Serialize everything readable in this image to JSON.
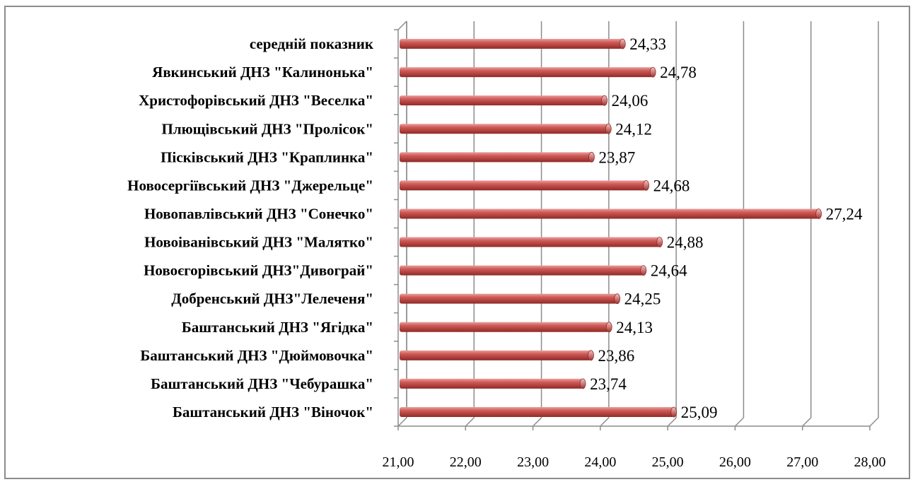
{
  "chart_data": {
    "type": "bar",
    "orientation": "horizontal",
    "title": "",
    "xlabel": "",
    "ylabel": "",
    "xlim": [
      21,
      28
    ],
    "ticks": [
      "21,00",
      "22,00",
      "23,00",
      "24,00",
      "25,00",
      "26,00",
      "27,00",
      "28,00"
    ],
    "grid": true,
    "legend": "none",
    "bar_color": "#c0504d",
    "categories": [
      "середній показник",
      "Явкинський ДНЗ \"Калинонька\"",
      "Христофорівський ДНЗ \"Веселка\"",
      "Плющівський ДНЗ \"Пролісок\"",
      "Пісківський ДНЗ \"Краплинка\"",
      "Новосергіївський ДНЗ \"Джерельце\"",
      "Новопавлівський ДНЗ \"Сонечко\"",
      "Новоіванівський ДНЗ \"Малятко\"",
      "Новоєгорівський ДНЗ\"Диво­грай\"",
      "Добренський ДНЗ\"Лелеченя\"",
      "Баштанський ДНЗ \"Ягідка\"",
      "Баштанський ДНЗ \"Дюймовочка\"",
      "Баштанський ДНЗ \"Чебурашка\"",
      "Баштанський ДНЗ \"Віночок\""
    ],
    "values": [
      24.33,
      24.78,
      24.06,
      24.12,
      23.87,
      24.68,
      27.24,
      24.88,
      24.64,
      24.25,
      24.13,
      23.86,
      23.74,
      25.09
    ],
    "value_labels": [
      "24,33",
      "24,78",
      "24,06",
      "24,12",
      "23,87",
      "24,68",
      "27,24",
      "24,88",
      "24,64",
      "24,25",
      "24,13",
      "23,86",
      "23,74",
      "25,09"
    ]
  }
}
